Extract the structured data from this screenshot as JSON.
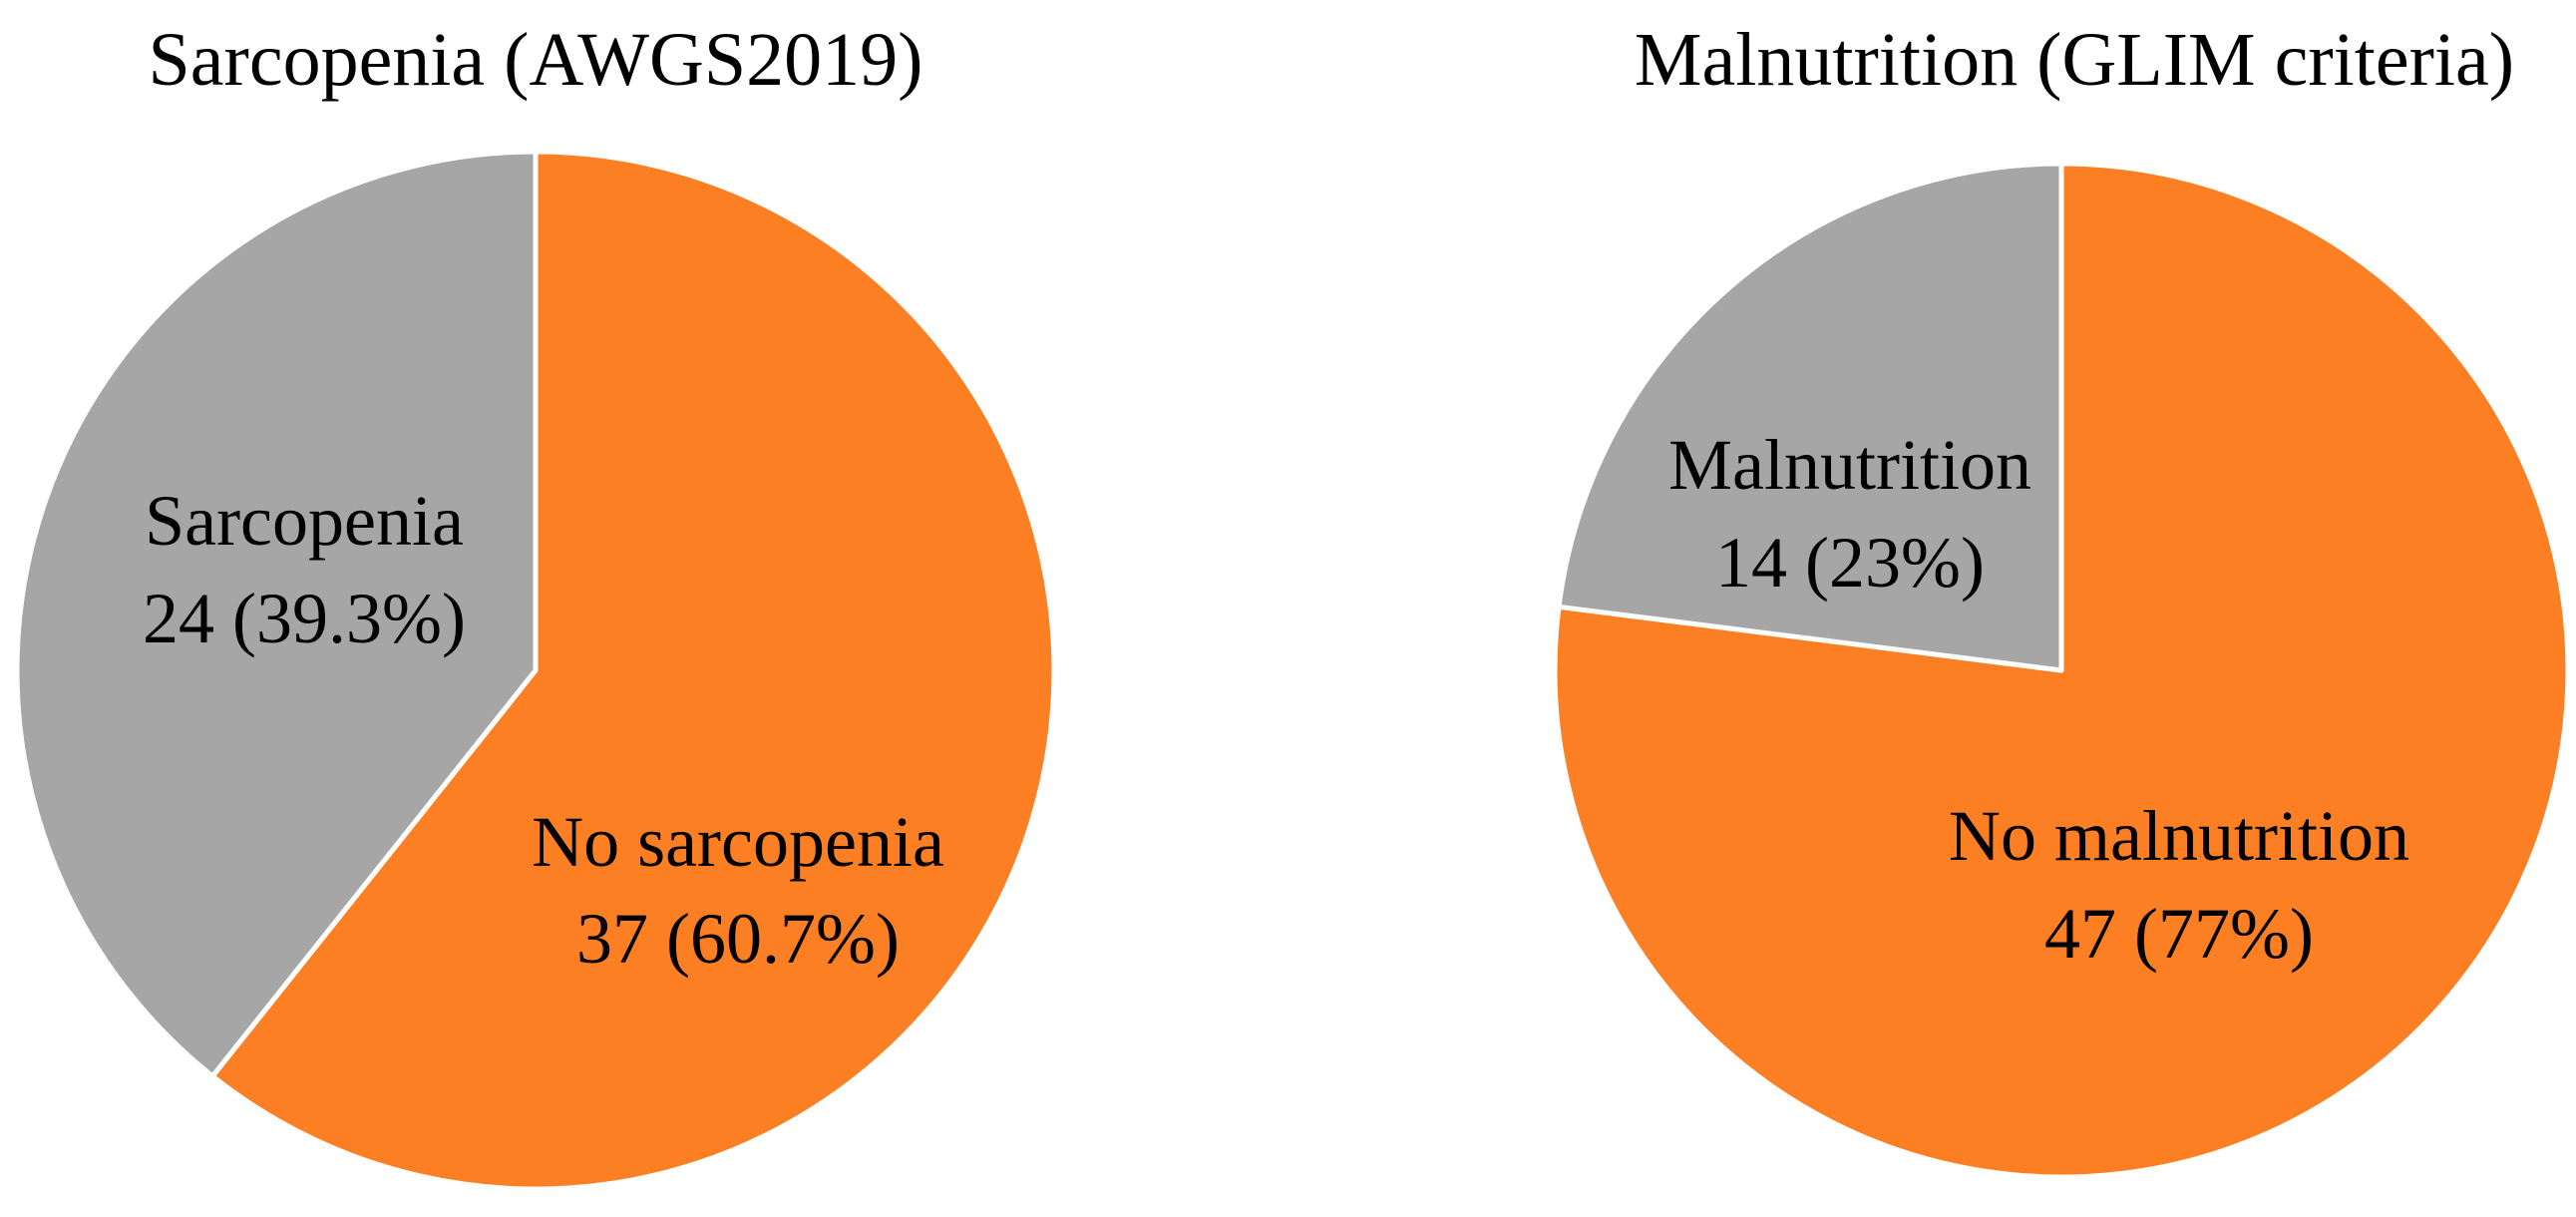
{
  "chart_data": [
    {
      "type": "pie",
      "title": "Sarcopenia (AWGS2019)",
      "slices": [
        {
          "label": "No sarcopenia",
          "count": 37,
          "percent": 60.7,
          "value_text": "37 (60.7%)",
          "color": "#FD7F23"
        },
        {
          "label": "Sarcopenia",
          "count": 24,
          "percent": 39.3,
          "value_text": "24 (39.3%)",
          "color": "#A6A6A6"
        }
      ],
      "start_angle_deg": 0,
      "direction": "clockwise"
    },
    {
      "type": "pie",
      "title": "Malnutrition (GLIM criteria)",
      "slices": [
        {
          "label": "No malnutrition",
          "count": 47,
          "percent": 77,
          "value_text": "47 (77%)",
          "color": "#FD7F23"
        },
        {
          "label": "Malnutrition",
          "count": 14,
          "percent": 23,
          "value_text": "14 (23%)",
          "color": "#A6A6A6"
        }
      ],
      "start_angle_deg": 0,
      "direction": "clockwise"
    }
  ]
}
